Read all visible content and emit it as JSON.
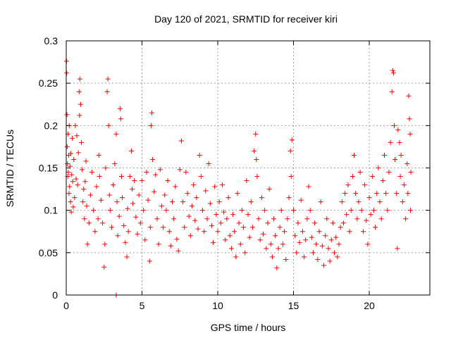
{
  "chart_data": {
    "type": "scatter",
    "title": "Day 120 of 2021, SRMTID for receiver kiri",
    "xlabel": "GPS time / hours",
    "ylabel": "SRMTID / TECUs",
    "xlim": [
      0,
      24
    ],
    "ylim": [
      0,
      0.3
    ],
    "x_ticks": [
      0,
      5,
      10,
      15,
      20
    ],
    "x_tick_labels": [
      "0",
      "5",
      "10",
      "15",
      "20"
    ],
    "y_ticks": [
      0,
      0.05,
      0.1,
      0.15,
      0.2,
      0.25,
      0.3
    ],
    "y_tick_labels": [
      "0",
      "0.05",
      "0.1",
      "0.15",
      "0.2",
      "0.25",
      "0.3"
    ],
    "grid": true,
    "marker": "+",
    "color": "#ff0000",
    "series": [
      {
        "name": "SRMTID",
        "points": [
          [
            0.02,
            0.276
          ],
          [
            0.03,
            0.262
          ],
          [
            0.05,
            0.213
          ],
          [
            0.06,
            0.175
          ],
          [
            0.08,
            0.155
          ],
          [
            0.1,
            0.14
          ],
          [
            0.12,
            0.19
          ],
          [
            0.14,
            0.145
          ],
          [
            0.16,
            0.165
          ],
          [
            0.18,
            0.12
          ],
          [
            0.2,
            0.2
          ],
          [
            0.22,
            0.128
          ],
          [
            0.25,
            0.152
          ],
          [
            0.28,
            0.11
          ],
          [
            0.3,
            0.167
          ],
          [
            0.33,
            0.098
          ],
          [
            0.36,
            0.142
          ],
          [
            0.4,
            0.185
          ],
          [
            0.43,
            0.134
          ],
          [
            0.46,
            0.104
          ],
          [
            0.5,
            0.16
          ],
          [
            0.55,
            0.115
          ],
          [
            0.6,
            0.2
          ],
          [
            0.65,
            0.137
          ],
          [
            0.7,
            0.188
          ],
          [
            0.75,
            0.13
          ],
          [
            0.8,
            0.168
          ],
          [
            0.85,
            0.24
          ],
          [
            0.88,
            0.212
          ],
          [
            0.9,
            0.255
          ],
          [
            0.95,
            0.225
          ],
          [
            1.0,
            0.18
          ],
          [
            1.05,
            0.148
          ],
          [
            1.1,
            0.11
          ],
          [
            1.15,
            0.125
          ],
          [
            1.2,
            0.09
          ],
          [
            1.25,
            0.134
          ],
          [
            1.3,
            0.158
          ],
          [
            1.35,
            0.105
          ],
          [
            1.4,
            0.06
          ],
          [
            1.5,
            0.085
          ],
          [
            1.6,
            0.118
          ],
          [
            1.7,
            0.145
          ],
          [
            1.8,
            0.1
          ],
          [
            1.9,
            0.075
          ],
          [
            2.0,
            0.128
          ],
          [
            2.1,
            0.09
          ],
          [
            2.15,
            0.165
          ],
          [
            2.2,
            0.14
          ],
          [
            2.3,
            0.112
          ],
          [
            2.4,
            0.085
          ],
          [
            2.5,
            0.033
          ],
          [
            2.55,
            0.06
          ],
          [
            2.6,
            0.15
          ],
          [
            2.7,
            0.24
          ],
          [
            2.75,
            0.255
          ],
          [
            2.8,
            0.2
          ],
          [
            2.85,
            0.118
          ],
          [
            2.9,
            0.1
          ],
          [
            3.0,
            0.08
          ],
          [
            3.1,
            0.13
          ],
          [
            3.2,
            0.155
          ],
          [
            3.3,
            0.19
          ],
          [
            3.35,
            0.11
          ],
          [
            3.4,
            0.07
          ],
          [
            3.5,
            0.093
          ],
          [
            3.55,
            0.22
          ],
          [
            3.6,
            0.208
          ],
          [
            3.65,
            0.14
          ],
          [
            3.7,
            0.115
          ],
          [
            3.8,
            0.082
          ],
          [
            3.9,
            0.062
          ],
          [
            4.0,
            0.045
          ],
          [
            4.05,
            0.102
          ],
          [
            4.1,
            0.075
          ],
          [
            4.2,
            0.14
          ],
          [
            4.3,
            0.17
          ],
          [
            4.35,
            0.125
          ],
          [
            4.4,
            0.108
          ],
          [
            4.5,
            0.135
          ],
          [
            4.6,
            0.092
          ],
          [
            4.7,
            0.072
          ],
          [
            4.8,
            0.118
          ],
          [
            4.9,
            0.085
          ],
          [
            5.0,
            0.135
          ],
          [
            5.1,
            0.1
          ],
          [
            5.2,
            0.065
          ],
          [
            5.3,
            0.145
          ],
          [
            5.4,
            0.112
          ],
          [
            5.5,
            0.04
          ],
          [
            5.55,
            0.08
          ],
          [
            5.6,
            0.2
          ],
          [
            5.65,
            0.215
          ],
          [
            5.7,
            0.16
          ],
          [
            5.8,
            0.122
          ],
          [
            5.9,
            0.142
          ],
          [
            6.0,
            0.09
          ],
          [
            6.1,
            0.06
          ],
          [
            6.2,
            0.148
          ],
          [
            6.3,
            0.105
          ],
          [
            6.4,
            0.08
          ],
          [
            6.5,
            0.118
          ],
          [
            6.6,
            0.1
          ],
          [
            6.7,
            0.135
          ],
          [
            6.8,
            0.075
          ],
          [
            6.9,
            0.058
          ],
          [
            7.0,
            0.11
          ],
          [
            7.1,
            0.09
          ],
          [
            7.2,
            0.128
          ],
          [
            7.3,
            0.066
          ],
          [
            7.4,
            0.052
          ],
          [
            7.5,
            0.148
          ],
          [
            7.6,
            0.182
          ],
          [
            7.7,
            0.11
          ],
          [
            7.8,
            0.08
          ],
          [
            7.9,
            0.145
          ],
          [
            8.0,
            0.12
          ],
          [
            8.1,
            0.093
          ],
          [
            8.2,
            0.07
          ],
          [
            8.3,
            0.105
          ],
          [
            8.4,
            0.13
          ],
          [
            8.5,
            0.088
          ],
          [
            8.6,
            0.115
          ],
          [
            8.7,
            0.078
          ],
          [
            8.8,
            0.165
          ],
          [
            8.9,
            0.14
          ],
          [
            9.0,
            0.1
          ],
          [
            9.1,
            0.075
          ],
          [
            9.2,
            0.123
          ],
          [
            9.3,
            0.09
          ],
          [
            9.4,
            0.155
          ],
          [
            9.5,
            0.108
          ],
          [
            9.6,
            0.082
          ],
          [
            9.7,
            0.062
          ],
          [
            9.8,
            0.128
          ],
          [
            9.9,
            0.095
          ],
          [
            10.0,
            0.075
          ],
          [
            10.1,
            0.11
          ],
          [
            10.2,
            0.085
          ],
          [
            10.3,
            0.13
          ],
          [
            10.4,
            0.098
          ],
          [
            10.5,
            0.065
          ],
          [
            10.6,
            0.09
          ],
          [
            10.7,
            0.115
          ],
          [
            10.8,
            0.07
          ],
          [
            10.9,
            0.055
          ],
          [
            11.0,
            0.095
          ],
          [
            11.1,
            0.075
          ],
          [
            11.2,
            0.045
          ],
          [
            11.3,
            0.12
          ],
          [
            11.4,
            0.085
          ],
          [
            11.5,
            0.06
          ],
          [
            11.6,
            0.1
          ],
          [
            11.7,
            0.08
          ],
          [
            11.8,
            0.05
          ],
          [
            11.9,
            0.135
          ],
          [
            12.0,
            0.095
          ],
          [
            12.1,
            0.068
          ],
          [
            12.2,
            0.11
          ],
          [
            12.3,
            0.08
          ],
          [
            12.4,
            0.17
          ],
          [
            12.5,
            0.19
          ],
          [
            12.55,
            0.16
          ],
          [
            12.6,
            0.14
          ],
          [
            12.7,
            0.09
          ],
          [
            12.8,
            0.065
          ],
          [
            12.9,
            0.115
          ],
          [
            13.0,
            0.072
          ],
          [
            13.1,
            0.1
          ],
          [
            13.2,
            0.055
          ],
          [
            13.3,
            0.085
          ],
          [
            13.4,
            0.125
          ],
          [
            13.5,
            0.06
          ],
          [
            13.6,
            0.045
          ],
          [
            13.7,
            0.09
          ],
          [
            13.8,
            0.07
          ],
          [
            13.9,
            0.032
          ],
          [
            14.0,
            0.055
          ],
          [
            14.1,
            0.08
          ],
          [
            14.2,
            0.1
          ],
          [
            14.3,
            0.06
          ],
          [
            14.4,
            0.075
          ],
          [
            14.5,
            0.042
          ],
          [
            14.6,
            0.09
          ],
          [
            14.7,
            0.115
          ],
          [
            14.8,
            0.17
          ],
          [
            14.85,
            0.14
          ],
          [
            14.9,
            0.183
          ],
          [
            15.0,
            0.1
          ],
          [
            15.1,
            0.07
          ],
          [
            15.2,
            0.05
          ],
          [
            15.3,
            0.085
          ],
          [
            15.4,
            0.062
          ],
          [
            15.5,
            0.112
          ],
          [
            15.6,
            0.075
          ],
          [
            15.7,
            0.045
          ],
          [
            15.8,
            0.065
          ],
          [
            15.9,
            0.09
          ],
          [
            16.0,
            0.128
          ],
          [
            16.1,
            0.1
          ],
          [
            16.2,
            0.068
          ],
          [
            16.3,
            0.05
          ],
          [
            16.4,
            0.085
          ],
          [
            16.5,
            0.06
          ],
          [
            16.6,
            0.042
          ],
          [
            16.7,
            0.075
          ],
          [
            16.8,
            0.11
          ],
          [
            16.9,
            0.058
          ],
          [
            17.0,
            0.035
          ],
          [
            17.1,
            0.07
          ],
          [
            17.2,
            0.09
          ],
          [
            17.3,
            0.055
          ],
          [
            17.4,
            0.04
          ],
          [
            17.5,
            0.065
          ],
          [
            17.6,
            0.085
          ],
          [
            17.7,
            0.05
          ],
          [
            17.8,
            0.068
          ],
          [
            17.9,
            0.045
          ],
          [
            18.0,
            0.06
          ],
          [
            18.1,
            0.08
          ],
          [
            18.2,
            0.11
          ],
          [
            18.3,
            0.085
          ],
          [
            18.4,
            0.12
          ],
          [
            18.5,
            0.095
          ],
          [
            18.6,
            0.13
          ],
          [
            18.7,
            0.075
          ],
          [
            18.8,
            0.1
          ],
          [
            18.9,
            0.14
          ],
          [
            19.0,
            0.165
          ],
          [
            19.1,
            0.12
          ],
          [
            19.2,
            0.09
          ],
          [
            19.3,
            0.11
          ],
          [
            19.4,
            0.145
          ],
          [
            19.5,
            0.1
          ],
          [
            19.6,
            0.075
          ],
          [
            19.7,
            0.13
          ],
          [
            19.8,
            0.088
          ],
          [
            19.9,
            0.06
          ],
          [
            20.0,
            0.115
          ],
          [
            20.1,
            0.095
          ],
          [
            20.2,
            0.14
          ],
          [
            20.3,
            0.1
          ],
          [
            20.4,
            0.08
          ],
          [
            20.5,
            0.12
          ],
          [
            20.6,
            0.15
          ],
          [
            20.7,
            0.11
          ],
          [
            20.8,
            0.09
          ],
          [
            20.9,
            0.135
          ],
          [
            21.0,
            0.165
          ],
          [
            21.1,
            0.12
          ],
          [
            21.2,
            0.1
          ],
          [
            21.3,
            0.145
          ],
          [
            21.4,
            0.18
          ],
          [
            21.5,
            0.24
          ],
          [
            21.55,
            0.265
          ],
          [
            21.6,
            0.262
          ],
          [
            21.65,
            0.2
          ],
          [
            21.7,
            0.16
          ],
          [
            21.8,
            0.12
          ],
          [
            21.85,
            0.055
          ],
          [
            21.9,
            0.195
          ],
          [
            22.0,
            0.18
          ],
          [
            22.05,
            0.14
          ],
          [
            22.1,
            0.165
          ],
          [
            22.2,
            0.11
          ],
          [
            22.3,
            0.13
          ],
          [
            22.4,
            0.09
          ],
          [
            22.5,
            0.155
          ],
          [
            22.55,
            0.12
          ],
          [
            22.6,
            0.235
          ],
          [
            22.65,
            0.208
          ],
          [
            22.7,
            0.19
          ],
          [
            22.72,
            0.1
          ],
          [
            22.75,
            0.145
          ],
          [
            3.3,
            0.0
          ]
        ]
      }
    ]
  }
}
